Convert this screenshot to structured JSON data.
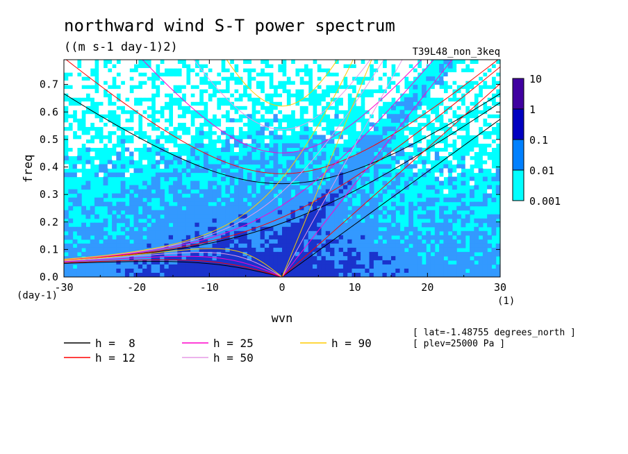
{
  "chart_data": {
    "type": "heatmap",
    "title": "northward wind S-T power spectrum",
    "units": "((m s-1 day-1)2)",
    "run_label": "T39L48_non_3keq",
    "xlabel": "wvn",
    "ylabel": "freq",
    "x_unit": "(1)",
    "y_unit": "(day-1)",
    "xlim": [
      -30,
      30
    ],
    "ylim": [
      0,
      0.79
    ],
    "x_ticks": [
      "-30",
      "-20",
      "-10",
      "0",
      "10",
      "20",
      "30"
    ],
    "y_ticks": [
      "0.0",
      "0.1",
      "0.2",
      "0.3",
      "0.4",
      "0.5",
      "0.6",
      "0.7"
    ],
    "x_tick_values": [
      -30,
      -20,
      -10,
      0,
      10,
      20,
      30
    ],
    "y_tick_values": [
      0,
      0.1,
      0.2,
      0.3,
      0.4,
      0.5,
      0.6,
      0.7
    ],
    "colorbar": {
      "levels": [
        "0.001",
        "0.01",
        "0.1",
        "1",
        "10"
      ],
      "colors": [
        "#00ffff",
        "#0080ff",
        "#0000c0",
        "#4000a0"
      ],
      "scale": "log"
    },
    "field_colors": {
      "low": "#ffffff",
      "l1": "#00ffff",
      "l2": "#3399ff",
      "l3": "#1a33cc"
    },
    "dispersion_curves": [
      {
        "name": "h =  8",
        "h": 8,
        "color": "#000000"
      },
      {
        "name": "h = 12",
        "h": 12,
        "color": "#ff0000"
      },
      {
        "name": "h = 25",
        "h": 25,
        "color": "#ff00cc"
      },
      {
        "name": "h = 50",
        "h": 50,
        "color": "#e69ae6"
      },
      {
        "name": "h = 90",
        "h": 90,
        "color": "#ffcc00"
      }
    ],
    "annotations": [
      "[ lat=-1.48755 degrees_north ]",
      "[ plev=25000 Pa ]"
    ]
  }
}
